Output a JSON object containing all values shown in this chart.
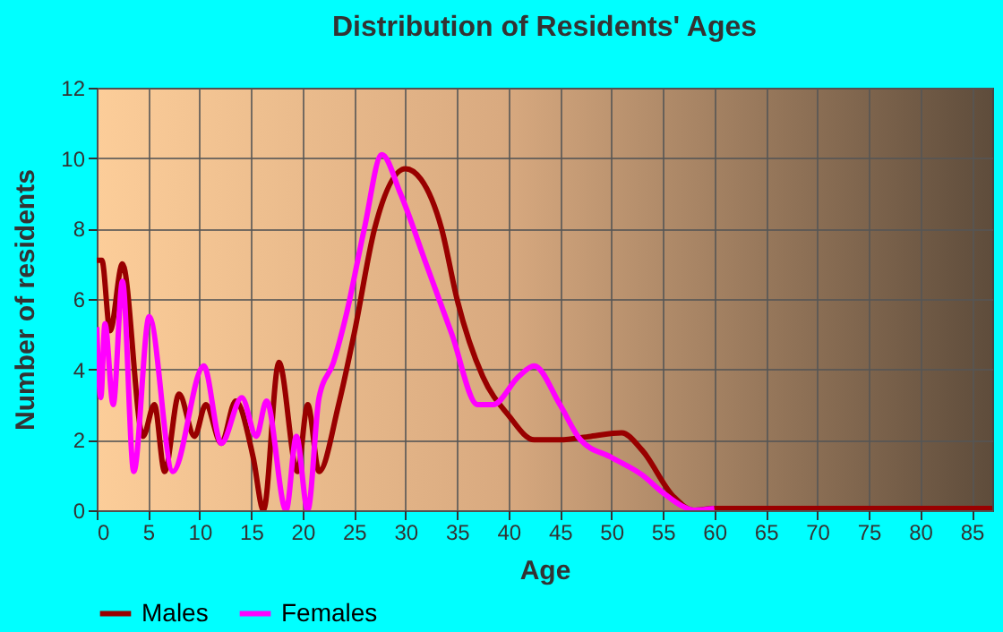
{
  "chart_data": {
    "type": "line",
    "title": "Distribution of Residents' Ages",
    "xlabel": "Age",
    "ylabel": "Number of residents",
    "xlim": [
      0,
      87
    ],
    "xticks": [
      0,
      5,
      10,
      15,
      20,
      25,
      30,
      35,
      40,
      45,
      50,
      55,
      60,
      65,
      70,
      75,
      80,
      85
    ],
    "ylim": [
      0,
      12
    ],
    "yticks": [
      0,
      2,
      4,
      6,
      8,
      10,
      12
    ],
    "grid": true,
    "legend": "bottom",
    "series": [
      {
        "name": "Males",
        "color": "#990000",
        "x": [
          0,
          0.5,
          1.3,
          2.5,
          4.5,
          5.6,
          6.6,
          8,
          9.5,
          10.6,
          12.1,
          13.5,
          15.2,
          16.2,
          17.7,
          19.5,
          20.5,
          21.6,
          23.5,
          25,
          27,
          30,
          31.5,
          33.5,
          35,
          37.5,
          40,
          42.5,
          45,
          48,
          51,
          53,
          56,
          58,
          60,
          87
        ],
        "values": [
          7.1,
          7.1,
          5.1,
          7.0,
          2.1,
          3.0,
          1.1,
          3.3,
          2.1,
          3.0,
          1.9,
          3.1,
          1.5,
          0,
          4.2,
          1.1,
          3.0,
          1.1,
          3.0,
          5.0,
          8.0,
          9.7,
          9.4,
          8.0,
          6.0,
          3.8,
          2.7,
          2.0,
          2.0,
          2.1,
          2.2,
          1.7,
          0.4,
          0,
          0.05,
          0.05
        ]
      },
      {
        "name": "Females",
        "color": "#ff00ff",
        "x": [
          0,
          0.4,
          0.8,
          1.6,
          2.5,
          3.6,
          5.1,
          7.4,
          10.4,
          12.1,
          14.1,
          15.5,
          16.5,
          18.4,
          19.4,
          20.5,
          21.6,
          23,
          24.2,
          26,
          27.7,
          29.5,
          32,
          34.5,
          37,
          38.5,
          41,
          42.5,
          45,
          47,
          50,
          53,
          55,
          57,
          58,
          60
        ],
        "values": [
          5.2,
          3.2,
          5.3,
          3.0,
          6.5,
          1.1,
          5.5,
          1.1,
          4.1,
          1.9,
          3.2,
          2.1,
          3.1,
          0,
          2.1,
          0,
          3.2,
          4.2,
          5.5,
          8.0,
          10.1,
          9.0,
          7.0,
          5.0,
          3.0,
          3.0,
          3.8,
          4.1,
          3.0,
          2.0,
          1.5,
          1.0,
          0.5,
          0.1,
          0,
          0.05
        ]
      }
    ]
  }
}
